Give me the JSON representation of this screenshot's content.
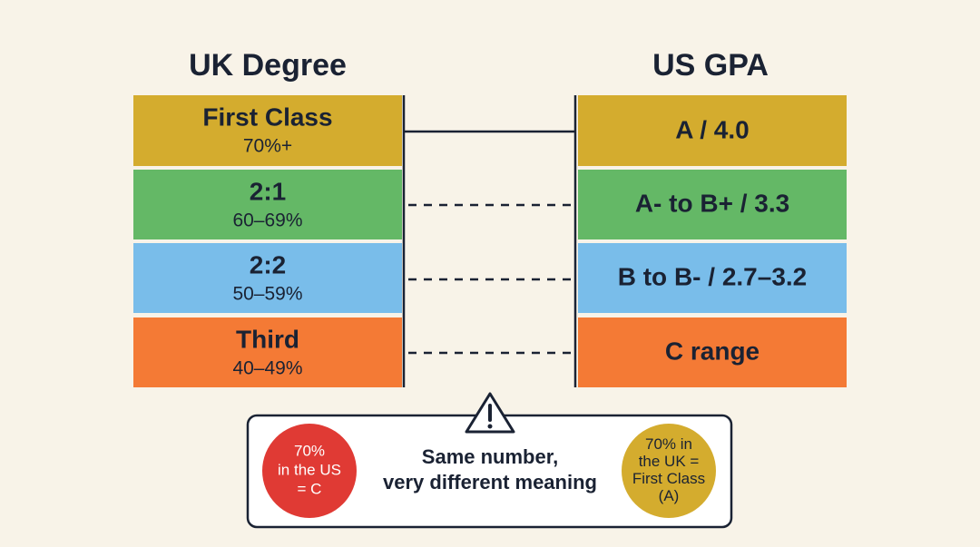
{
  "uk_degree": {
    "title": "UK Degree",
    "rows": [
      {
        "name": "First Class",
        "range": "70%+"
      },
      {
        "name": "2:1",
        "range": "60–69%"
      },
      {
        "name": "2:2",
        "range": "50–59%"
      },
      {
        "name": "Third",
        "range": "40–49%"
      }
    ]
  },
  "us_gpa": {
    "title": "US GPA",
    "rows": [
      "A / 4.0",
      "A- to B+ / 3.3",
      "B to B- / 2.7–3.2",
      "C range"
    ]
  },
  "callout": {
    "left": [
      "70%",
      "in the US",
      "= C"
    ],
    "middle": [
      "Same number,",
      "very different meaning"
    ],
    "right": [
      "70% in",
      "the UK =",
      "First Class",
      "(A)"
    ]
  }
}
